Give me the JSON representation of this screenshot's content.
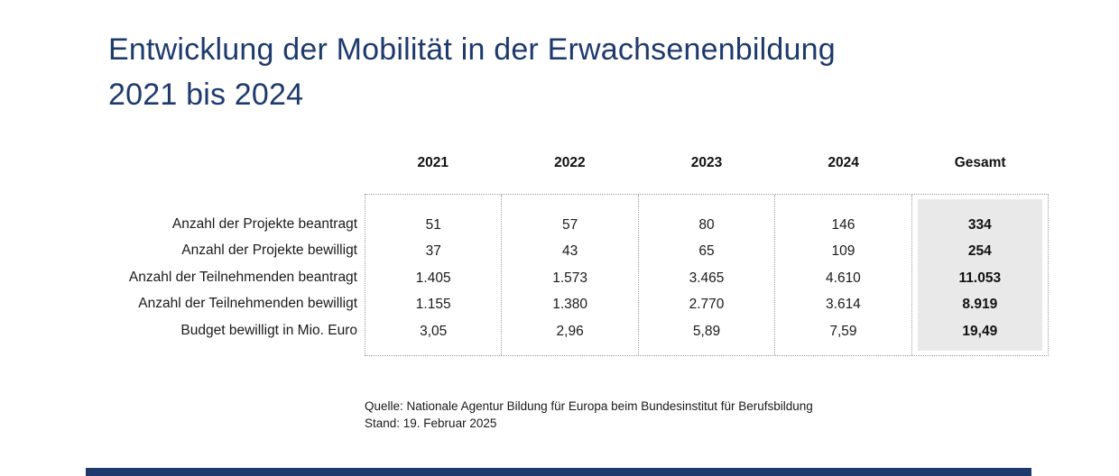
{
  "title": {
    "line1": "Entwicklung der Mobilität in der Erwachsenenbildung",
    "line2": "2021 bis 2024"
  },
  "table": {
    "column_headers": [
      "2021",
      "2022",
      "2023",
      "2024",
      "Gesamt"
    ],
    "rows": [
      {
        "label": "Anzahl der Projekte beantragt",
        "values": [
          "51",
          "57",
          "80",
          "146"
        ],
        "total": "334"
      },
      {
        "label": "Anzahl der Projekte bewilligt",
        "values": [
          "37",
          "43",
          "65",
          "109"
        ],
        "total": "254"
      },
      {
        "label": "Anzahl der Teilnehmenden beantragt",
        "values": [
          "1.405",
          "1.573",
          "3.465",
          "4.610"
        ],
        "total": "11.053"
      },
      {
        "label": "Anzahl der Teilnehmenden bewilligt",
        "values": [
          "1.155",
          "1.380",
          "2.770",
          "3.614"
        ],
        "total": "8.919"
      },
      {
        "label": "Budget bewilligt in Mio. Euro",
        "values": [
          "3,05",
          "2,96",
          "5,89",
          "7,59"
        ],
        "total": "19,49"
      }
    ]
  },
  "footer": {
    "source": "Quelle: Nationale Agentur Bildung für Europa beim Bundesinstitut für Berufsbildung",
    "date": "Stand: 19. Februar 2025"
  },
  "colors": {
    "accent_navy": "#1e3a6d",
    "total_column_bg": "#e9e9e9"
  },
  "chart_data": {
    "type": "table",
    "title": "Entwicklung der Mobilität in der Erwachsenenbildung 2021 bis 2024",
    "categories": [
      "2021",
      "2022",
      "2023",
      "2024",
      "Gesamt"
    ],
    "series": [
      {
        "name": "Anzahl der Projekte beantragt",
        "values": [
          51,
          57,
          80,
          146,
          334
        ]
      },
      {
        "name": "Anzahl der Projekte bewilligt",
        "values": [
          37,
          43,
          65,
          109,
          254
        ]
      },
      {
        "name": "Anzahl der Teilnehmenden beantragt",
        "values": [
          1405,
          1573,
          3465,
          4610,
          11053
        ]
      },
      {
        "name": "Anzahl der Teilnehmenden bewilligt",
        "values": [
          1155,
          1380,
          2770,
          3614,
          8919
        ]
      },
      {
        "name": "Budget bewilligt in Mio. Euro",
        "values": [
          3.05,
          2.96,
          5.89,
          7.59,
          19.49
        ]
      }
    ],
    "source": "Quelle: Nationale Agentur Bildung für Europa beim Bundesinstitut für Berufsbildung",
    "as_of": "Stand: 19. Februar 2025"
  }
}
